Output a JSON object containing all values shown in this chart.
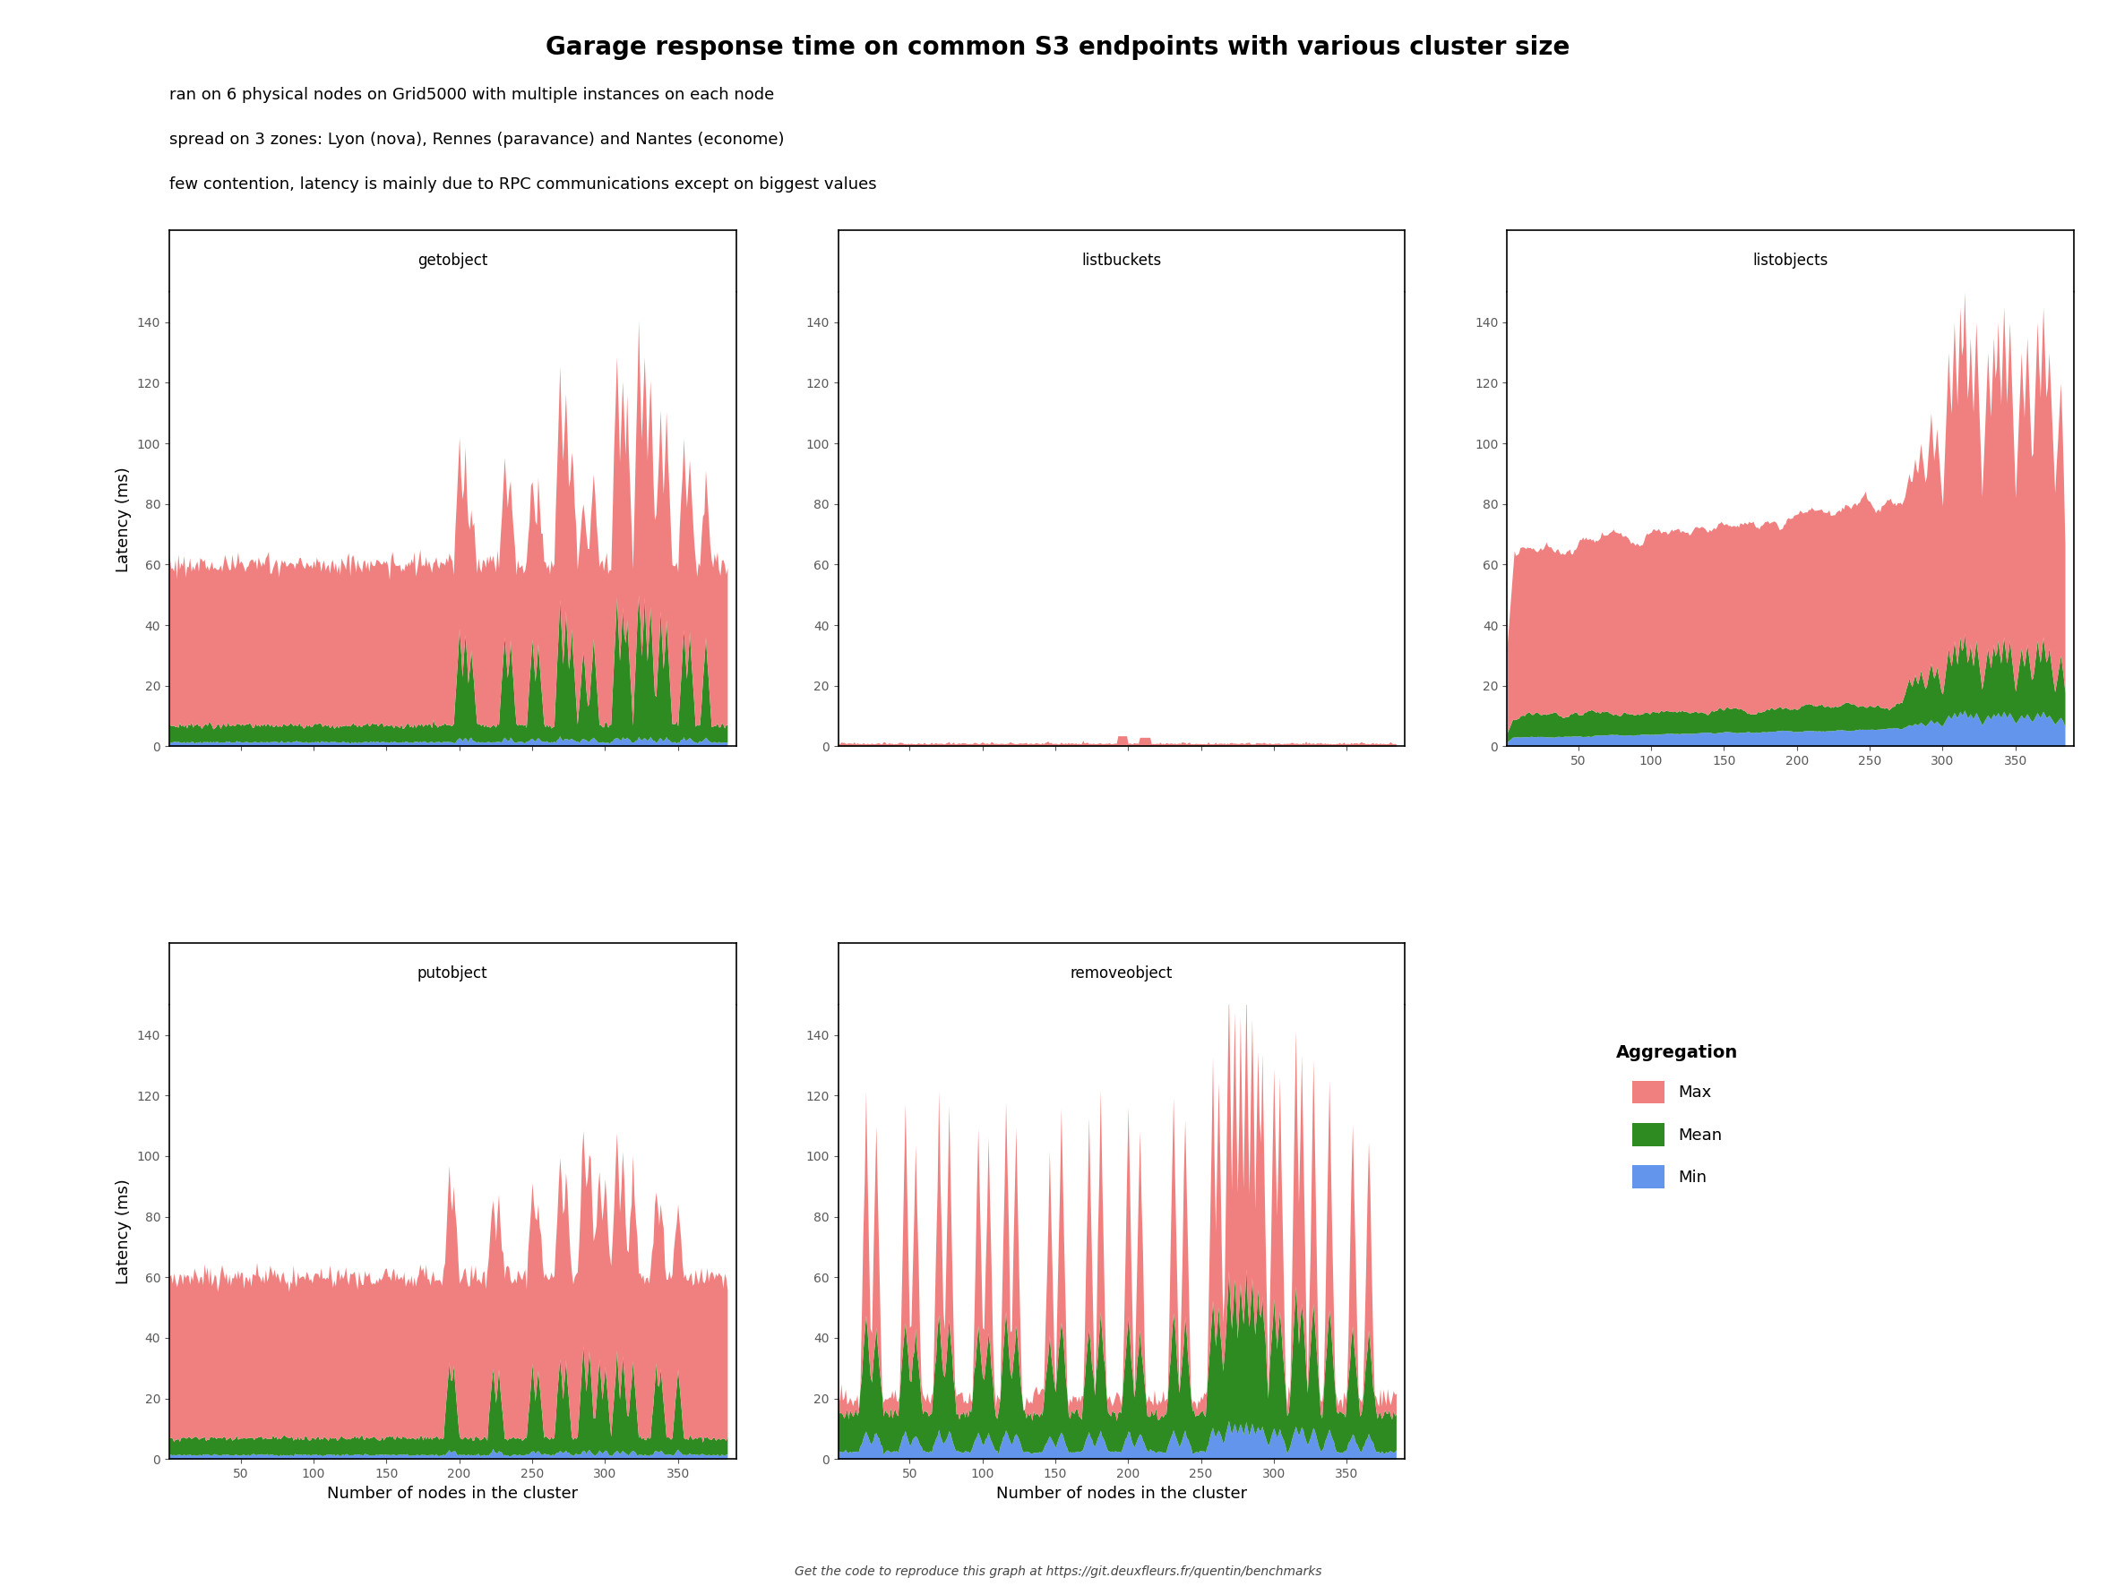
{
  "title": "Garage response time on common S3 endpoints with various cluster size",
  "subtitle_lines": [
    "ran on 6 physical nodes on Grid5000 with multiple instances on each node",
    "spread on 3 zones: Lyon (nova), Rennes (paravance) and Nantes (econome)",
    "few contention, latency is mainly due to RPC communications except on biggest values"
  ],
  "footer": "Get the code to reproduce this graph at https://git.deuxfleurs.fr/quentin/benchmarks",
  "xlabel": "Number of nodes in the cluster",
  "ylabel": "Latency (ms)",
  "panels": [
    "getobject",
    "listbuckets",
    "listobjects",
    "putobject",
    "removeobject"
  ],
  "colors": {
    "max": "#F08080",
    "mean": "#2E8B22",
    "min": "#6495ED"
  },
  "ylim": [
    0,
    150
  ],
  "xlim": [
    1,
    390
  ],
  "xticks": [
    50,
    100,
    150,
    200,
    250,
    300,
    350
  ],
  "yticks": [
    0,
    20,
    40,
    60,
    80,
    100,
    120,
    140
  ],
  "tick_color": "#595959"
}
